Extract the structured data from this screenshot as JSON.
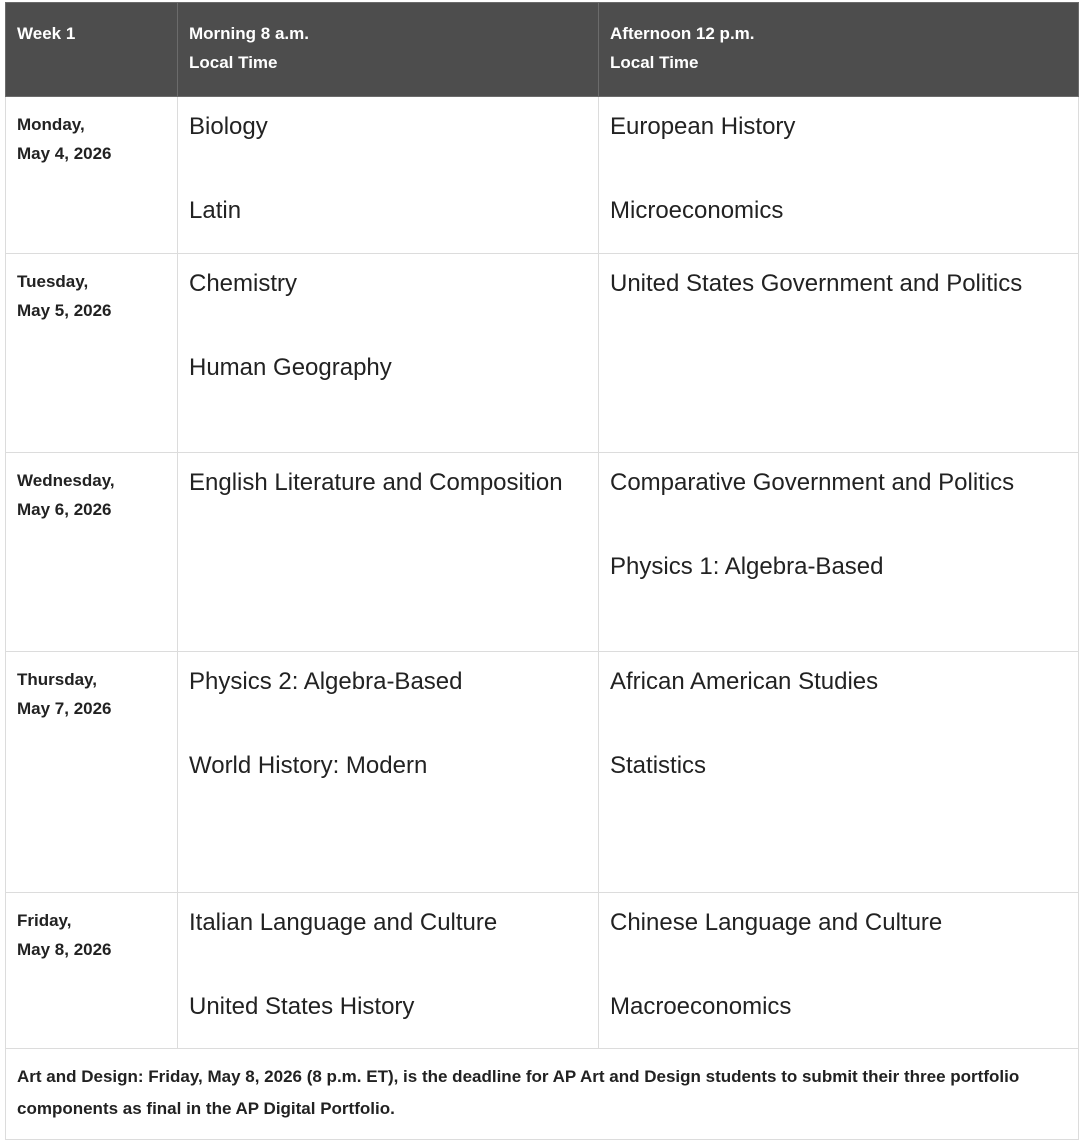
{
  "header": {
    "week": "Week 1",
    "morning": [
      "Morning 8 a.m.",
      "Local Time"
    ],
    "afternoon": [
      "Afternoon 12 p.m.",
      "Local Time"
    ]
  },
  "rows": [
    {
      "day": "Monday,",
      "date": "May 4, 2026",
      "morning": [
        "Biology",
        "Latin"
      ],
      "afternoon": [
        "European History",
        "Microeconomics"
      ]
    },
    {
      "day": "Tuesday,",
      "date": "May 5, 2026",
      "morning": [
        "Chemistry",
        "Human Geography"
      ],
      "afternoon": [
        "United States Government and Politics"
      ]
    },
    {
      "day": "Wednesday,",
      "date": "May 6, 2026",
      "morning": [
        "English Literature and Composition"
      ],
      "afternoon": [
        "Comparative Government and Politics",
        "Physics 1: Algebra-Based"
      ]
    },
    {
      "day": "Thursday,",
      "date": "May 7, 2026",
      "morning": [
        "Physics 2: Algebra-Based",
        "World History: Modern"
      ],
      "afternoon": [
        "African American Studies",
        "Statistics"
      ]
    },
    {
      "day": "Friday,",
      "date": "May 8, 2026",
      "morning": [
        "Italian  Language and Culture",
        "United States History"
      ],
      "afternoon": [
        "Chinese Language and Culture",
        "Macroeconomics"
      ]
    }
  ],
  "note": "Art and Design: Friday, May 8, 2026 (8 p.m. ET), is the deadline for AP Art and Design students to submit their three portfolio components as final in the AP Digital Portfolio."
}
